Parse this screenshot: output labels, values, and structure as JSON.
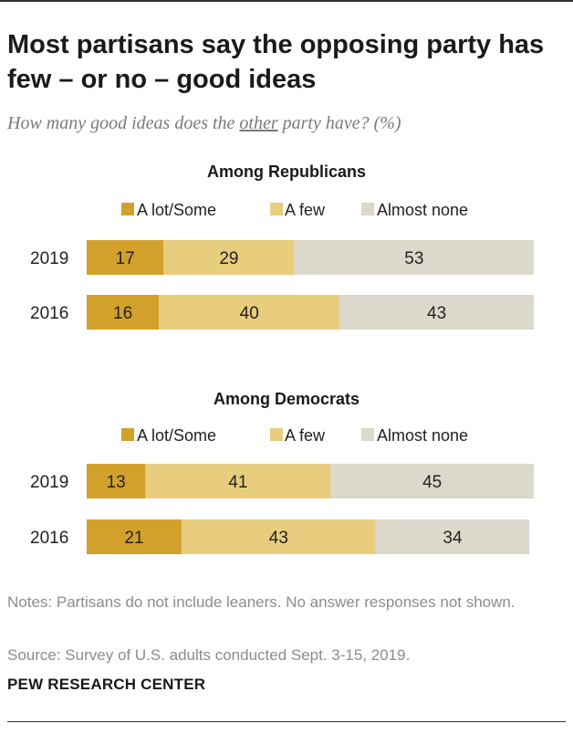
{
  "title": "Most partisans say the opposing party has few – or no – good ideas",
  "subtitle": {
    "before": "How many good ideas does the ",
    "emphasis": "other",
    "after": " party have? (%)"
  },
  "colors": {
    "a_lot_some": "#d2a12c",
    "a_few": "#e8cd7e",
    "almost_none": "#dcd8cb",
    "text": "#222222"
  },
  "chart_data": [
    {
      "type": "bar",
      "orientation": "horizontal",
      "stacked": true,
      "title": "Among Republicans",
      "legend": [
        "A lot/Some",
        "A few",
        "Almost none"
      ],
      "legend_position": "top",
      "categories": [
        "2019",
        "2016"
      ],
      "series": [
        {
          "name": "A lot/Some",
          "values": [
            17,
            16
          ]
        },
        {
          "name": "A few",
          "values": [
            29,
            40
          ]
        },
        {
          "name": "Almost none",
          "values": [
            53,
            43
          ]
        }
      ],
      "xlim": [
        0,
        100
      ]
    },
    {
      "type": "bar",
      "orientation": "horizontal",
      "stacked": true,
      "title": "Among Democrats",
      "legend": [
        "A lot/Some",
        "A few",
        "Almost none"
      ],
      "legend_position": "top",
      "categories": [
        "2019",
        "2016"
      ],
      "series": [
        {
          "name": "A lot/Some",
          "values": [
            13,
            21
          ]
        },
        {
          "name": "A few",
          "values": [
            41,
            43
          ]
        },
        {
          "name": "Almost none",
          "values": [
            45,
            34
          ]
        }
      ],
      "xlim": [
        0,
        100
      ]
    }
  ],
  "notes": "Notes: Partisans do not include leaners. No answer responses not shown.",
  "source": "Source: Survey of U.S. adults conducted Sept. 3-15, 2019.",
  "brand": "PEW RESEARCH CENTER"
}
